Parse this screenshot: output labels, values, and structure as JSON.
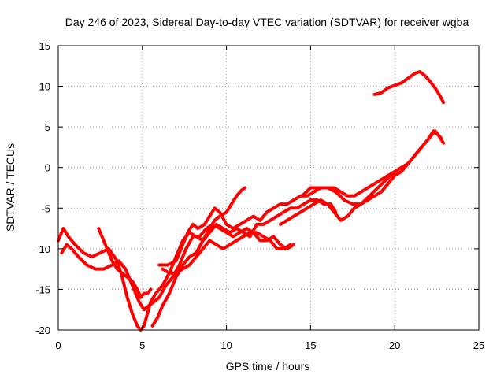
{
  "chart_data": {
    "type": "line",
    "title": "Day 246 of 2023, Sidereal Day-to-day VTEC variation (SDTVAR) for receiver wgba",
    "xlabel": "GPS time / hours",
    "ylabel": "SDTVAR / TECUs",
    "xlim": [
      0,
      25
    ],
    "ylim": [
      -20,
      15
    ],
    "xticks": [
      0,
      5,
      10,
      15,
      20,
      25
    ],
    "yticks": [
      -20,
      -15,
      -10,
      -5,
      0,
      5,
      10,
      15
    ],
    "xtick_labels": [
      "0",
      "5",
      "10",
      "15",
      "20",
      "25"
    ],
    "ytick_labels": [
      "-20",
      "-15",
      "-10",
      "-5",
      "0",
      "5",
      "10",
      "15"
    ],
    "grid": true,
    "legend": "none",
    "series_color": "#ff0000",
    "series": [
      {
        "name": "track-1",
        "x": [
          0.0,
          0.3,
          0.6,
          1.0,
          1.5,
          2.0,
          2.5,
          3.0,
          3.5,
          3.8,
          4.1,
          4.4,
          4.7,
          4.9,
          5.1,
          5.3,
          5.5,
          5.8,
          6.2,
          6.6,
          7.0,
          7.4,
          7.8,
          8.2,
          8.6,
          9.0,
          9.4,
          9.8,
          10.2,
          10.6,
          11.0,
          11.4,
          11.8,
          12.2,
          12.6,
          13.0,
          13.4,
          13.8,
          14.2,
          14.6,
          15.0,
          15.4,
          15.8,
          16.2,
          16.5
        ],
        "y": [
          -9.0,
          -7.5,
          -8.5,
          -9.5,
          -10.5,
          -11.0,
          -10.5,
          -10.0,
          -11.5,
          -13.5,
          -16.0,
          -18.0,
          -19.5,
          -20.0,
          -19.5,
          -18.0,
          -16.5,
          -15.5,
          -14.5,
          -13.0,
          -11.0,
          -9.0,
          -8.0,
          -8.5,
          -9.0,
          -8.0,
          -7.0,
          -7.5,
          -8.0,
          -7.5,
          -8.0,
          -8.5,
          -7.0,
          -7.0,
          -6.5,
          -6.0,
          -5.5,
          -5.0,
          -5.0,
          -4.5,
          -4.0,
          -4.0,
          -4.5,
          -4.5,
          -5.5
        ]
      },
      {
        "name": "track-2",
        "x": [
          0.2,
          0.5,
          0.8,
          1.2,
          1.7,
          2.2,
          2.7,
          3.2,
          3.6,
          4.0,
          4.4,
          4.8,
          5.1,
          5.4,
          5.7,
          6.0,
          6.4,
          6.8,
          7.2,
          7.6,
          8.0,
          8.4,
          8.8,
          9.2,
          9.6,
          10.0,
          10.4,
          10.8,
          11.2,
          11.6,
          12.0,
          12.4,
          12.8,
          13.2,
          13.6,
          14.0
        ],
        "y": [
          -10.5,
          -9.5,
          -10.0,
          -11.0,
          -12.0,
          -12.5,
          -12.5,
          -12.0,
          -11.5,
          -12.5,
          -14.5,
          -16.5,
          -17.5,
          -17.0,
          -16.5,
          -16.0,
          -14.5,
          -13.5,
          -12.0,
          -10.0,
          -8.5,
          -8.5,
          -7.5,
          -7.0,
          -7.5,
          -8.0,
          -8.5,
          -8.0,
          -7.5,
          -8.0,
          -9.0,
          -9.0,
          -8.5,
          -9.5,
          -10.0,
          -9.5
        ]
      },
      {
        "name": "track-3",
        "x": [
          2.4,
          2.6,
          2.8,
          3.0,
          3.2,
          3.5,
          3.8,
          4.1,
          4.4,
          4.7,
          4.9,
          5.1,
          5.3,
          5.5
        ],
        "y": [
          -7.5,
          -8.5,
          -9.5,
          -10.5,
          -11.5,
          -12.5,
          -13.0,
          -13.5,
          -14.0,
          -15.0,
          -16.0,
          -15.5,
          -15.5,
          -15.0
        ]
      },
      {
        "name": "track-4",
        "x": [
          5.6,
          5.9,
          6.2,
          6.6,
          7.0,
          7.4,
          7.8,
          8.2,
          8.6,
          9.0,
          9.3,
          9.6,
          10.0,
          10.3,
          10.6,
          10.9,
          11.1
        ],
        "y": [
          -19.5,
          -18.5,
          -17.0,
          -15.5,
          -13.5,
          -12.0,
          -11.0,
          -10.5,
          -9.0,
          -7.5,
          -6.5,
          -6.0,
          -5.5,
          -4.5,
          -3.5,
          -2.8,
          -2.5
        ]
      },
      {
        "name": "track-5",
        "x": [
          6.0,
          6.5,
          7.0,
          7.4,
          7.7,
          8.0,
          8.3,
          8.7,
          9.0,
          9.3,
          9.6,
          10.0,
          10.4,
          10.8,
          11.2,
          11.6,
          12.0,
          12.4,
          12.8,
          13.2,
          13.6,
          14.0,
          14.4,
          14.8,
          15.2,
          15.6,
          16.0,
          16.4,
          16.8,
          17.2,
          17.6,
          18.0,
          18.4,
          18.8,
          19.2,
          19.6,
          20.0,
          20.4,
          20.8,
          21.2,
          21.6,
          22.0,
          22.3,
          22.6,
          22.9
        ],
        "y": [
          -12.0,
          -12.0,
          -11.5,
          -9.5,
          -8.0,
          -7.0,
          -7.5,
          -7.0,
          -6.0,
          -5.0,
          -5.5,
          -7.0,
          -7.5,
          -7.0,
          -6.5,
          -6.0,
          -6.5,
          -5.5,
          -5.0,
          -4.5,
          -4.5,
          -4.0,
          -3.5,
          -3.5,
          -3.0,
          -2.5,
          -2.5,
          -2.5,
          -3.0,
          -3.5,
          -3.5,
          -3.0,
          -2.5,
          -2.0,
          -1.5,
          -1.0,
          -0.5,
          0.0,
          0.5,
          1.5,
          2.5,
          3.5,
          4.5,
          4.0,
          3.0
        ]
      },
      {
        "name": "track-6",
        "x": [
          6.2,
          6.6,
          7.0,
          7.4,
          7.8,
          8.2,
          8.6,
          9.0,
          9.4,
          9.8,
          10.2,
          10.6,
          11.0,
          11.4,
          11.8,
          12.2,
          12.6,
          13.0,
          13.4,
          13.8
        ],
        "y": [
          -12.5,
          -13.0,
          -13.0,
          -12.5,
          -12.0,
          -11.0,
          -10.0,
          -9.0,
          -9.5,
          -10.0,
          -9.5,
          -9.0,
          -8.5,
          -8.0,
          -8.0,
          -8.5,
          -9.0,
          -10.0,
          -10.0,
          -9.5
        ]
      },
      {
        "name": "track-7",
        "x": [
          13.2,
          13.6,
          14.0,
          14.4,
          14.8,
          15.2,
          15.6,
          16.0,
          16.4,
          16.8,
          17.2,
          17.6,
          18.0,
          18.4,
          18.8,
          19.2,
          19.6,
          20.0,
          20.4,
          20.8,
          21.2,
          21.6,
          22.0,
          22.4,
          22.8
        ],
        "y": [
          -7.0,
          -6.5,
          -6.0,
          -5.5,
          -5.0,
          -4.5,
          -4.0,
          -4.5,
          -5.5,
          -6.5,
          -6.0,
          -5.0,
          -4.5,
          -4.0,
          -3.5,
          -3.0,
          -2.0,
          -1.0,
          -0.5,
          0.5,
          1.5,
          2.5,
          3.5,
          4.5,
          3.5
        ]
      },
      {
        "name": "track-8",
        "x": [
          14.5,
          15.0,
          15.5,
          16.0,
          16.5,
          17.0,
          17.5,
          18.0,
          18.5,
          19.0,
          19.5,
          20.0,
          20.4
        ],
        "y": [
          -3.5,
          -2.5,
          -2.5,
          -2.5,
          -3.0,
          -4.0,
          -4.5,
          -4.5,
          -3.5,
          -2.5,
          -1.5,
          -0.5,
          0.0
        ]
      },
      {
        "name": "track-9",
        "x": [
          18.8,
          19.2,
          19.6,
          20.0,
          20.4,
          20.8,
          21.2,
          21.5,
          21.8,
          22.1,
          22.4,
          22.7,
          22.9
        ],
        "y": [
          9.0,
          9.2,
          9.8,
          10.1,
          10.4,
          11.0,
          11.6,
          11.8,
          11.3,
          10.6,
          9.8,
          8.8,
          8.0
        ]
      }
    ]
  }
}
